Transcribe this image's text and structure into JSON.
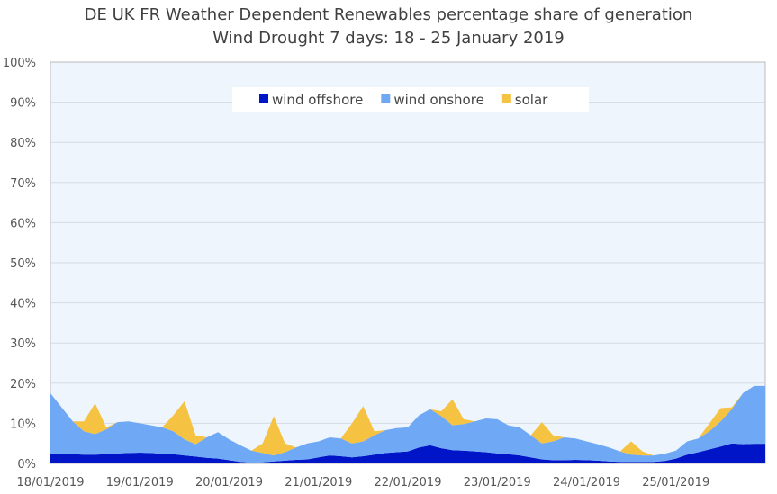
{
  "chart_data": {
    "type": "area",
    "stacked": true,
    "title": "DE UK FR Weather Dependent Renewables percentage share of generation",
    "subtitle": "Wind Drought 7 days:  18 - 25 January 2019",
    "xlabel": "",
    "ylabel": "",
    "ylim": [
      0,
      100
    ],
    "y_ticks": [
      "0%",
      "10%",
      "20%",
      "30%",
      "40%",
      "50%",
      "60%",
      "70%",
      "80%",
      "90%",
      "100%"
    ],
    "x_ticks": [
      "18/01/2019",
      "19/01/2019",
      "20/01/2019",
      "21/01/2019",
      "22/01/2019",
      "23/01/2019",
      "24/01/2019",
      "25/01/2019"
    ],
    "x_interval_hours": 3,
    "grid": true,
    "legend_placement": "top-center",
    "series": [
      {
        "name": "wind offshore",
        "color": "#0014C8",
        "values": [
          2.5,
          2.4,
          2.3,
          2.2,
          2.2,
          2.3,
          2.5,
          2.6,
          2.7,
          2.6,
          2.4,
          2.3,
          2.0,
          1.7,
          1.4,
          1.2,
          0.8,
          0.4,
          0.2,
          0.3,
          0.5,
          0.7,
          0.9,
          1.0,
          1.5,
          2.0,
          1.8,
          1.5,
          1.8,
          2.2,
          2.6,
          2.8,
          3.0,
          4.0,
          4.5,
          3.8,
          3.3,
          3.2,
          3.0,
          2.8,
          2.5,
          2.3,
          2.0,
          1.5,
          1.0,
          0.8,
          0.8,
          0.9,
          0.8,
          0.7,
          0.5,
          0.4,
          0.4,
          0.4,
          0.4,
          0.6,
          1.2,
          2.2,
          2.8,
          3.5,
          4.2,
          5.0,
          4.8,
          4.9,
          4.9
        ]
      },
      {
        "name": "wind onshore",
        "color": "#6FA8F5",
        "values": [
          15,
          11.6,
          8.2,
          5.8,
          5.1,
          6.2,
          7.8,
          7.9,
          7.3,
          6.9,
          6.6,
          5.7,
          4.0,
          3.1,
          5.1,
          6.6,
          5.2,
          4.1,
          3.0,
          2.3,
          1.5,
          2.1,
          3.1,
          4.0,
          4.0,
          4.5,
          4.4,
          3.5,
          3.7,
          4.8,
          5.7,
          6.0,
          6,
          8,
          9,
          8,
          6.2,
          6.6,
          7.5,
          8.4,
          8.5,
          7.2,
          7.0,
          5.5,
          4.0,
          4.7,
          5.7,
          5.3,
          4.7,
          4.1,
          3.5,
          2.6,
          1.8,
          1.6,
          1.6,
          1.8,
          2.0,
          3.3,
          3.4,
          4.5,
          6.3,
          8.5,
          12.7,
          14.4,
          14.4
        ]
      },
      {
        "name": "solar",
        "color": "#F5C242",
        "values": [
          0,
          0,
          0,
          2.5,
          7.7,
          0.5,
          0,
          0,
          0,
          0,
          0,
          4,
          9.5,
          2.2,
          0,
          0,
          0,
          0,
          0,
          2.4,
          9.8,
          2.2,
          0,
          0,
          0,
          0,
          0,
          5,
          8.8,
          1,
          0,
          0,
          0,
          0,
          0,
          1.2,
          6.5,
          1.2,
          0,
          0,
          0,
          0,
          0,
          0,
          5.3,
          1.5,
          0,
          0,
          0,
          0,
          0,
          0,
          3.3,
          1,
          0,
          0,
          0,
          0,
          0,
          2,
          3.3,
          0.5,
          0,
          0,
          0
        ]
      }
    ],
    "plot_background": "#EEF5FD"
  }
}
